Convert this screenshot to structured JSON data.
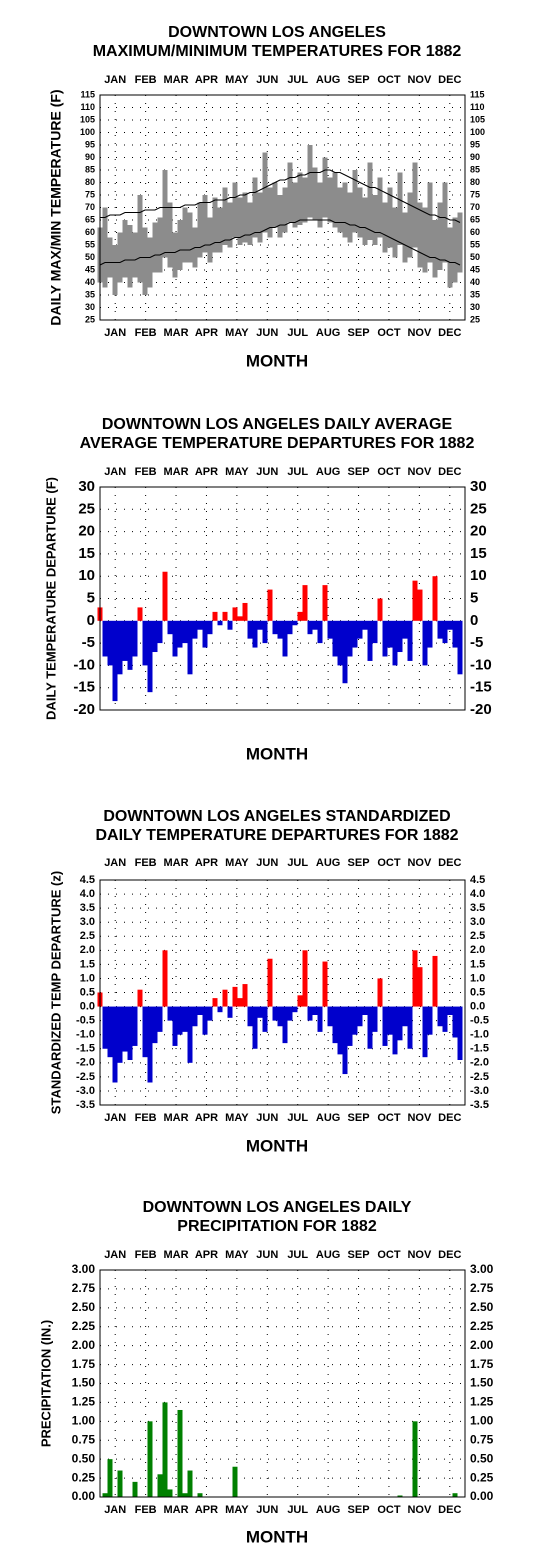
{
  "chart_data": [
    {
      "type": "range",
      "title": [
        "DOWNTOWN LOS ANGELES",
        "MAXIMUM/MINIMUM TEMPERATURES FOR 1882"
      ],
      "y_label": "DAILY MAX/MIN TEMPERATURE (F)",
      "x_label": "MONTH",
      "categories": [
        "JAN",
        "FEB",
        "MAR",
        "APR",
        "MAY",
        "JUN",
        "JUL",
        "AUG",
        "SEP",
        "OCT",
        "NOV",
        "DEC"
      ],
      "x": [
        1,
        6,
        11,
        16,
        21,
        26,
        31,
        36,
        41,
        46,
        51,
        56,
        61,
        66,
        71,
        76,
        81,
        86,
        91,
        96,
        101,
        106,
        111,
        116,
        121,
        126,
        131,
        136,
        141,
        146,
        151,
        156,
        161,
        166,
        171,
        176,
        181,
        186,
        191,
        196,
        201,
        206,
        211,
        216,
        221,
        226,
        231,
        236,
        241,
        246,
        251,
        256,
        261,
        266,
        271,
        276,
        281,
        286,
        291,
        296,
        301,
        306,
        311,
        316,
        321,
        326,
        331,
        336,
        341,
        346,
        351,
        356,
        361
      ],
      "xlim": [
        1,
        366
      ],
      "ylim": [
        25,
        115
      ],
      "yticks": [
        25,
        30,
        35,
        40,
        45,
        50,
        55,
        60,
        65,
        70,
        75,
        80,
        85,
        90,
        95,
        100,
        105,
        110,
        115
      ],
      "grid": true,
      "color": "#8c8c8c",
      "high": [
        62,
        70,
        58,
        55,
        60,
        65,
        63,
        60,
        75,
        62,
        58,
        64,
        66,
        85,
        72,
        60,
        65,
        70,
        68,
        62,
        72,
        75,
        66,
        74,
        70,
        78,
        72,
        80,
        74,
        76,
        72,
        82,
        76,
        92,
        78,
        80,
        75,
        78,
        88,
        80,
        84,
        82,
        95,
        86,
        80,
        90,
        82,
        84,
        78,
        80,
        76,
        85,
        78,
        74,
        88,
        75,
        82,
        72,
        78,
        70,
        84,
        68,
        76,
        88,
        72,
        70,
        80,
        65,
        72,
        80,
        62,
        66,
        68
      ],
      "low": [
        40,
        38,
        42,
        35,
        40,
        42,
        38,
        42,
        40,
        35,
        38,
        44,
        44,
        50,
        46,
        42,
        45,
        48,
        48,
        46,
        50,
        52,
        48,
        52,
        52,
        55,
        54,
        58,
        55,
        56,
        55,
        58,
        56,
        60,
        58,
        62,
        58,
        60,
        64,
        62,
        63,
        64,
        66,
        65,
        62,
        66,
        64,
        62,
        60,
        58,
        56,
        60,
        58,
        55,
        57,
        55,
        58,
        52,
        54,
        50,
        55,
        48,
        50,
        54,
        46,
        44,
        48,
        42,
        45,
        48,
        38,
        40,
        44
      ],
      "lines": [
        {
          "color": "#000000",
          "values": [
            66,
            66,
            67,
            67,
            67,
            68,
            68,
            68,
            68,
            69,
            69,
            69,
            70,
            70,
            70,
            70,
            70,
            71,
            71,
            71,
            72,
            72,
            72,
            73,
            73,
            73,
            74,
            74,
            75,
            75,
            76,
            76,
            77,
            78,
            79,
            80,
            81,
            81,
            82,
            82,
            83,
            83,
            84,
            84,
            84,
            85,
            85,
            84,
            84,
            83,
            82,
            81,
            80,
            79,
            78,
            78,
            77,
            76,
            75,
            74,
            73,
            72,
            71,
            70,
            69,
            68,
            67,
            67,
            66,
            66,
            65,
            65,
            64
          ]
        },
        {
          "color": "#000000",
          "values": [
            47,
            48,
            48,
            48,
            48,
            49,
            49,
            49,
            50,
            50,
            50,
            51,
            51,
            52,
            52,
            52,
            53,
            53,
            53,
            54,
            54,
            55,
            55,
            56,
            56,
            57,
            57,
            58,
            58,
            59,
            59,
            60,
            60,
            61,
            62,
            62,
            63,
            63,
            64,
            64,
            65,
            65,
            65,
            65,
            65,
            65,
            65,
            64,
            64,
            64,
            63,
            63,
            62,
            62,
            61,
            60,
            60,
            59,
            58,
            57,
            56,
            55,
            54,
            53,
            52,
            51,
            50,
            50,
            49,
            49,
            48,
            48,
            47
          ]
        }
      ]
    },
    {
      "type": "bar",
      "title": [
        "DOWNTOWN LOS ANGELES DAILY AVERAGE",
        "AVERAGE TEMPERATURE DEPARTURES FOR 1882"
      ],
      "y_label": "DAILY TEMPERATURE DEPARTURE (F)",
      "x_label": "MONTH",
      "categories": [
        "JAN",
        "FEB",
        "MAR",
        "APR",
        "MAY",
        "JUN",
        "JUL",
        "AUG",
        "SEP",
        "OCT",
        "NOV",
        "DEC"
      ],
      "x": [
        1,
        6,
        11,
        16,
        21,
        26,
        31,
        36,
        41,
        46,
        51,
        56,
        61,
        66,
        71,
        76,
        81,
        86,
        91,
        96,
        101,
        106,
        111,
        116,
        121,
        126,
        131,
        136,
        141,
        146,
        151,
        156,
        161,
        166,
        171,
        176,
        181,
        186,
        191,
        196,
        201,
        206,
        211,
        216,
        221,
        226,
        231,
        236,
        241,
        246,
        251,
        256,
        261,
        266,
        271,
        276,
        281,
        286,
        291,
        296,
        301,
        306,
        311,
        316,
        321,
        326,
        331,
        336,
        341,
        346,
        351,
        356,
        361
      ],
      "xlim": [
        1,
        366
      ],
      "ylim": [
        -20,
        30
      ],
      "yticks": [
        -20,
        -15,
        -10,
        -5,
        0,
        5,
        10,
        15,
        20,
        25,
        30
      ],
      "grid": true,
      "positive_color": "#ff0000",
      "negative_color": "#0000cc",
      "values": [
        3,
        -8,
        -10,
        -18,
        -12,
        -9,
        -11,
        -8,
        3,
        -10,
        -16,
        -7,
        -5,
        11,
        -3,
        -8,
        -6,
        -5,
        -12,
        -4,
        -2,
        -6,
        -3,
        2,
        -1,
        2,
        -2,
        3,
        1,
        4,
        -4,
        -6,
        -2,
        -5,
        7,
        -3,
        -4,
        -8,
        -3,
        -1,
        2,
        8,
        -3,
        -2,
        -5,
        8,
        -4,
        -8,
        -10,
        -14,
        -8,
        -6,
        -4,
        -2,
        -9,
        -5,
        5,
        -8,
        -6,
        -10,
        -7,
        -4,
        -9,
        9,
        7,
        -10,
        -6,
        10,
        -4,
        -5,
        -2,
        -6,
        -12
      ]
    },
    {
      "type": "bar",
      "title": [
        "DOWNTOWN LOS ANGELES STANDARDIZED",
        "DAILY TEMPERATURE DEPARTURES FOR 1882"
      ],
      "y_label": "STANDARDIZED TEMP DEPARTURE (z)",
      "x_label": "MONTH",
      "categories": [
        "JAN",
        "FEB",
        "MAR",
        "APR",
        "MAY",
        "JUN",
        "JUL",
        "AUG",
        "SEP",
        "OCT",
        "NOV",
        "DEC"
      ],
      "x": [
        1,
        6,
        11,
        16,
        21,
        26,
        31,
        36,
        41,
        46,
        51,
        56,
        61,
        66,
        71,
        76,
        81,
        86,
        91,
        96,
        101,
        106,
        111,
        116,
        121,
        126,
        131,
        136,
        141,
        146,
        151,
        156,
        161,
        166,
        171,
        176,
        181,
        186,
        191,
        196,
        201,
        206,
        211,
        216,
        221,
        226,
        231,
        236,
        241,
        246,
        251,
        256,
        261,
        266,
        271,
        276,
        281,
        286,
        291,
        296,
        301,
        306,
        311,
        316,
        321,
        326,
        331,
        336,
        341,
        346,
        351,
        356,
        361
      ],
      "xlim": [
        1,
        366
      ],
      "ylim": [
        -3.5,
        4.5
      ],
      "yticks": [
        -3.5,
        {
          "value": -3,
          "label": "-3.0"
        },
        -2.5,
        {
          "value": -2,
          "label": "-2.0"
        },
        -1.5,
        {
          "value": -1,
          "label": "-1.0"
        },
        -0.5,
        {
          "value": 0,
          "label": "0.0"
        },
        0.5,
        {
          "value": 1,
          "label": "1.0"
        },
        1.5,
        {
          "value": 2,
          "label": "2.0"
        },
        2.5,
        {
          "value": 3,
          "label": "3.0"
        },
        3.5,
        {
          "value": 4,
          "label": "4.0"
        },
        4.5
      ],
      "grid": true,
      "positive_color": "#ff0000",
      "negative_color": "#0000cc",
      "values": [
        0.5,
        -1.5,
        -1.8,
        -2.7,
        -2.0,
        -1.6,
        -1.9,
        -1.4,
        0.6,
        -1.8,
        -2.7,
        -1.3,
        -0.9,
        2.0,
        -0.5,
        -1.4,
        -1.0,
        -0.9,
        -2.0,
        -0.7,
        -0.3,
        -1.0,
        -0.5,
        0.3,
        -0.2,
        0.6,
        -0.4,
        0.7,
        0.3,
        0.8,
        -0.7,
        -1.5,
        -0.4,
        -0.9,
        1.7,
        -0.5,
        -0.7,
        -1.3,
        -0.5,
        -0.2,
        0.4,
        2.0,
        -0.5,
        -0.3,
        -0.9,
        1.6,
        -0.7,
        -1.3,
        -1.7,
        -2.4,
        -1.4,
        -1.0,
        -0.7,
        -0.3,
        -1.5,
        -0.9,
        1.0,
        -1.4,
        -1.0,
        -1.7,
        -1.2,
        -0.7,
        -1.5,
        2.0,
        1.4,
        -1.8,
        -1.0,
        1.8,
        -0.7,
        -0.9,
        -0.3,
        -1.1,
        -1.9
      ]
    },
    {
      "type": "bar",
      "title": [
        "DOWNTOWN LOS ANGELES DAILY",
        "PRECIPITATION FOR 1882"
      ],
      "y_label": "PRECIPITATION (IN.)",
      "x_label": "MONTH",
      "categories": [
        "JAN",
        "FEB",
        "MAR",
        "APR",
        "MAY",
        "JUN",
        "JUL",
        "AUG",
        "SEP",
        "OCT",
        "NOV",
        "DEC"
      ],
      "x": [
        1,
        6,
        11,
        16,
        21,
        26,
        31,
        36,
        41,
        46,
        51,
        56,
        61,
        66,
        71,
        76,
        81,
        86,
        91,
        96,
        101,
        106,
        111,
        116,
        121,
        126,
        131,
        136,
        141,
        146,
        151,
        156,
        161,
        166,
        171,
        176,
        181,
        186,
        191,
        196,
        201,
        206,
        211,
        216,
        221,
        226,
        231,
        236,
        241,
        246,
        251,
        256,
        261,
        266,
        271,
        276,
        281,
        286,
        291,
        296,
        301,
        306,
        311,
        316,
        321,
        326,
        331,
        336,
        341,
        346,
        351,
        356,
        361
      ],
      "xlim": [
        1,
        366
      ],
      "ylim": [
        0,
        3
      ],
      "yticks": [
        {
          "value": 0,
          "label": "0.00"
        },
        0.25,
        {
          "value": 0.5,
          "label": "0.50"
        },
        0.75,
        {
          "value": 1,
          "label": "1.00"
        },
        1.25,
        {
          "value": 1.5,
          "label": "1.50"
        },
        1.75,
        {
          "value": 2,
          "label": "2.00"
        },
        2.25,
        {
          "value": 2.5,
          "label": "2.50"
        },
        2.75,
        {
          "value": 3,
          "label": "3.00"
        }
      ],
      "grid": true,
      "positive_color": "#008000",
      "negative_color": "#008000",
      "values": [
        0,
        0.05,
        0.5,
        0,
        0.35,
        0,
        0,
        0.2,
        0,
        0,
        1.0,
        0,
        0.3,
        1.25,
        0.1,
        0,
        1.15,
        0.05,
        0.35,
        0,
        0.05,
        0,
        0,
        0,
        0,
        0,
        0,
        0.4,
        0,
        0,
        0,
        0,
        0,
        0,
        0,
        0,
        0,
        0,
        0,
        0,
        0,
        0,
        0,
        0,
        0,
        0,
        0,
        0,
        0,
        0,
        0,
        0,
        0,
        0,
        0,
        0,
        0,
        0,
        0,
        0,
        0.02,
        0,
        0,
        1.0,
        0,
        0,
        0,
        0,
        0,
        0,
        0,
        0.05,
        0
      ]
    }
  ]
}
